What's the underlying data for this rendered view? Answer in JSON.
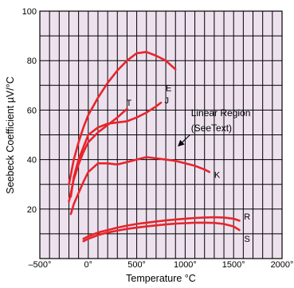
{
  "chart_data": {
    "type": "line",
    "title": "",
    "xlabel": "Temperature °C",
    "ylabel": "Seebeck Coefficient µV/°C",
    "xlim": [
      -500,
      2000
    ],
    "ylim": [
      0,
      100
    ],
    "x_ticks": [
      -500,
      0,
      500,
      1000,
      1500,
      2000
    ],
    "x_tick_labels": [
      "–500°",
      "0°",
      "500°",
      "1000°",
      "1500°",
      "2000°"
    ],
    "y_ticks": [
      20,
      40,
      60,
      80,
      100
    ],
    "y_tick_labels": [
      "20",
      "40",
      "60",
      "80",
      "100"
    ],
    "grid": true,
    "x_minor_step": 100,
    "y_minor_step": 10,
    "legend": "none",
    "colors": {
      "background": "#ede1ee",
      "grid": "#000000",
      "series": "#e8242a",
      "text": "#000000"
    },
    "series": [
      {
        "name": "E",
        "x": [
          -200,
          -150,
          -100,
          -50,
          0,
          100,
          200,
          300,
          400,
          500,
          600,
          700,
          800,
          900
        ],
        "y": [
          30,
          40,
          47,
          53,
          58,
          65,
          71,
          76,
          80,
          83,
          83.5,
          82,
          80,
          76.5
        ]
      },
      {
        "name": "T",
        "x": [
          -200,
          -150,
          -100,
          -50,
          0,
          100,
          200,
          300,
          400
        ],
        "y": [
          23,
          32,
          38,
          43,
          47,
          51,
          54,
          57,
          60.5
        ]
      },
      {
        "name": "J",
        "x": [
          -180,
          -150,
          -100,
          -50,
          0,
          100,
          200,
          300,
          400,
          500,
          600,
          700,
          750
        ],
        "y": [
          25,
          33,
          40,
          45,
          50,
          53,
          54.5,
          55,
          55.5,
          57,
          59,
          61.5,
          63
        ]
      },
      {
        "name": "K",
        "x": [
          -180,
          -150,
          -100,
          -50,
          0,
          100,
          200,
          300,
          400,
          500,
          600,
          700,
          800,
          900,
          1000,
          1100,
          1200,
          1250
        ],
        "y": [
          18,
          22,
          26.5,
          31,
          35,
          38.5,
          38.5,
          38,
          39,
          40,
          41,
          40.5,
          40,
          39.5,
          38.5,
          37.5,
          36,
          35
        ]
      },
      {
        "name": "R",
        "x": [
          -50,
          0,
          100,
          200,
          300,
          400,
          500,
          600,
          700,
          800,
          900,
          1000,
          1100,
          1200,
          1300,
          1400,
          1500,
          1560
        ],
        "y": [
          8,
          9,
          10.5,
          11.5,
          12.5,
          13.3,
          14,
          14.5,
          15,
          15.4,
          15.8,
          16.1,
          16.4,
          16.6,
          16.7,
          16.6,
          16.1,
          15.3
        ]
      },
      {
        "name": "S",
        "x": [
          -50,
          0,
          100,
          200,
          300,
          400,
          500,
          600,
          700,
          800,
          900,
          1000,
          1100,
          1200,
          1300,
          1400,
          1500,
          1560
        ],
        "y": [
          7,
          8,
          9.5,
          10.5,
          11.3,
          12,
          12.5,
          13,
          13.4,
          13.8,
          14.1,
          14.3,
          14.5,
          14.5,
          14.4,
          14,
          13,
          11.5
        ]
      }
    ],
    "curve_labels": [
      {
        "text": "E",
        "x": 830,
        "y": 69
      },
      {
        "text": "T",
        "x": 420,
        "y": 63
      },
      {
        "text": "J",
        "x": 810,
        "y": 64
      },
      {
        "text": "K",
        "x": 1330,
        "y": 34
      },
      {
        "text": "R",
        "x": 1640,
        "y": 17
      },
      {
        "text": "S",
        "x": 1640,
        "y": 8
      }
    ],
    "annotation": {
      "lines": [
        "Linear Region",
        "(SeeText)"
      ],
      "text_x": 1060,
      "text_y": [
        57.5,
        51.5
      ],
      "arrow_from": [
        1050,
        50
      ],
      "arrow_to": [
        930,
        45.5
      ]
    }
  }
}
